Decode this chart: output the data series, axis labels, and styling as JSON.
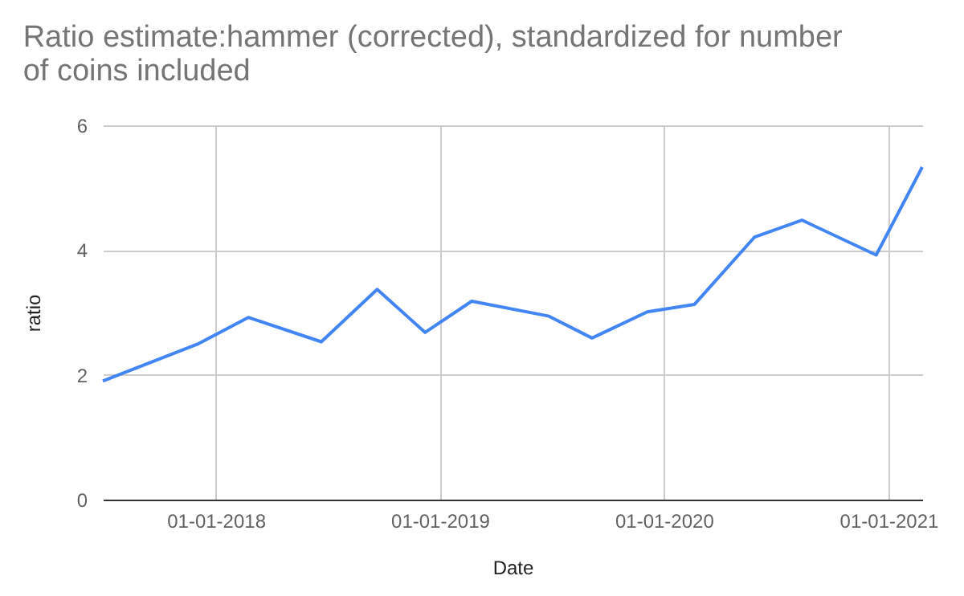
{
  "chart_data": {
    "type": "line",
    "title": "Ratio estimate:hammer (corrected), standardized for number of coins included",
    "xlabel": "Date",
    "ylabel": "ratio",
    "x": [
      "2017-07-01",
      "2017-12-04",
      "2018-02-23",
      "2018-06-22",
      "2018-09-21",
      "2018-12-08",
      "2019-02-22",
      "2019-06-28",
      "2019-09-06",
      "2019-12-05",
      "2020-02-20",
      "2020-05-28",
      "2020-08-13",
      "2020-12-12",
      "2021-02-25"
    ],
    "series": [
      {
        "color": "#4285f4",
        "values": [
          1.9,
          2.5,
          2.92,
          2.53,
          3.37,
          2.68,
          3.18,
          2.94,
          2.59,
          3.01,
          3.13,
          4.21,
          4.48,
          3.92,
          5.33
        ]
      }
    ],
    "xlim": [
      "2017-07-01",
      "2021-02-25"
    ],
    "xticks": [
      {
        "value": "2018-01-01",
        "label": "01-01-2018"
      },
      {
        "value": "2019-01-01",
        "label": "01-01-2019"
      },
      {
        "value": "2020-01-01",
        "label": "01-01-2020"
      },
      {
        "value": "2021-01-01",
        "label": "01-01-2021"
      }
    ],
    "ylim": [
      0,
      6
    ],
    "yticks": [
      0,
      2,
      4,
      6
    ],
    "grid": true,
    "marker": "none",
    "line_style": "solid"
  }
}
